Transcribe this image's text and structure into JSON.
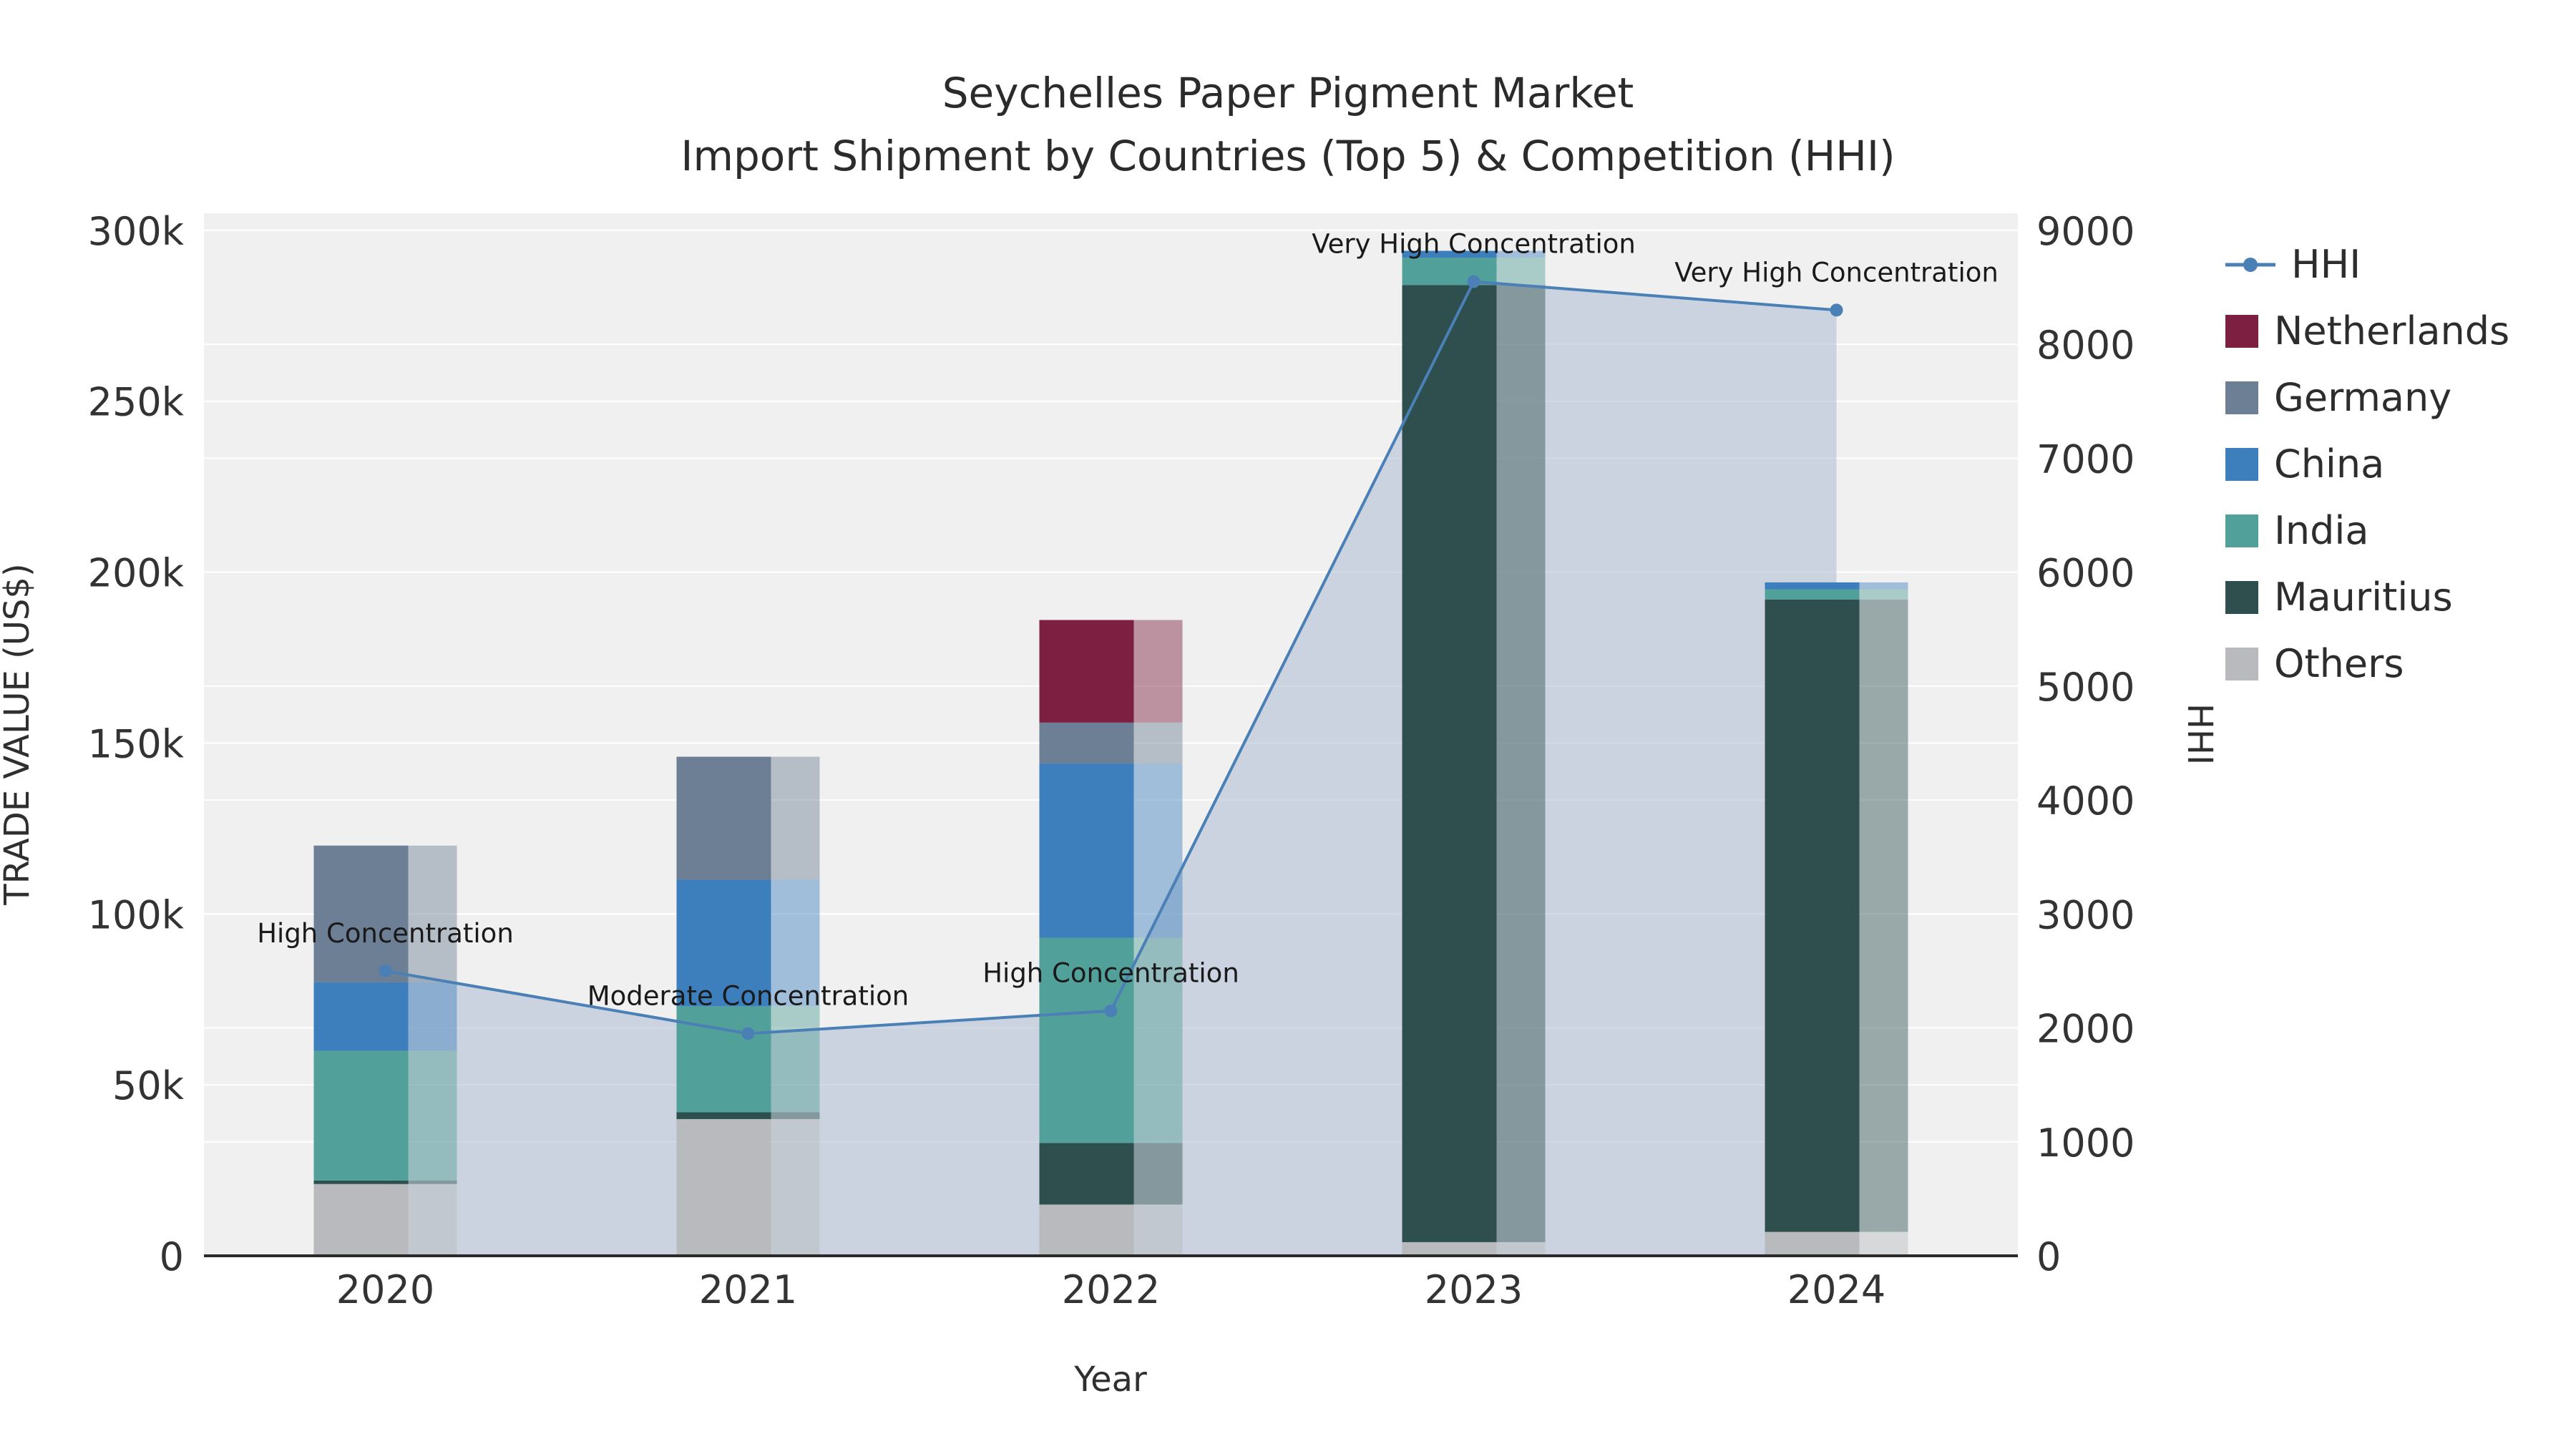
{
  "chart_data": {
    "type": "bar",
    "title_line1": "Seychelles Paper Pigment Market",
    "title_line2": "Import Shipment by Countries (Top 5) & Competition (HHI)",
    "xlabel": "Year",
    "ylabel_left": "TRADE VALUE (US$)",
    "ylabel_right": "HHI",
    "categories": [
      "2020",
      "2021",
      "2022",
      "2023",
      "2024"
    ],
    "stack_order_bottom_to_top": [
      "Others",
      "Mauritius",
      "India",
      "China",
      "Germany",
      "Netherlands"
    ],
    "series": [
      {
        "name": "Netherlands",
        "color": "#7d1f41",
        "values": [
          0,
          0,
          30000,
          0,
          0
        ]
      },
      {
        "name": "Germany",
        "color": "#6d7f95",
        "values": [
          40000,
          36000,
          12000,
          0,
          0
        ]
      },
      {
        "name": "China",
        "color": "#3d7ebd",
        "values": [
          20000,
          37000,
          51000,
          2000,
          2000
        ]
      },
      {
        "name": "India",
        "color": "#52a09a",
        "values": [
          38000,
          31000,
          60000,
          8000,
          3000
        ]
      },
      {
        "name": "Mauritius",
        "color": "#2f4f4f",
        "values": [
          1000,
          2000,
          18000,
          280000,
          185000
        ]
      },
      {
        "name": "Others",
        "color": "#b8babd",
        "values": [
          21000,
          40000,
          15000,
          4000,
          7000
        ]
      }
    ],
    "hhi_line": {
      "name": "HHI",
      "color": "#4a80b5",
      "fill_color": "rgba(164,182,206,0.5)",
      "values": [
        2500,
        1950,
        2150,
        8550,
        8300
      ]
    },
    "annotations": [
      {
        "x": "2020",
        "label": "High Concentration"
      },
      {
        "x": "2021",
        "label": "Moderate Concentration"
      },
      {
        "x": "2022",
        "label": "High Concentration"
      },
      {
        "x": "2023",
        "label": "Very High Concentration"
      },
      {
        "x": "2024",
        "label": "Very High Concentration"
      }
    ],
    "left_axis": {
      "max": 305000,
      "ticks": [
        {
          "label": "0",
          "value": 0
        },
        {
          "label": "50k",
          "value": 50000
        },
        {
          "label": "100k",
          "value": 100000
        },
        {
          "label": "150k",
          "value": 150000
        },
        {
          "label": "200k",
          "value": 200000
        },
        {
          "label": "250k",
          "value": 250000
        },
        {
          "label": "300k",
          "value": 300000
        }
      ]
    },
    "right_axis": {
      "max": 9150,
      "ticks": [
        {
          "label": "0",
          "value": 0
        },
        {
          "label": "1000",
          "value": 1000
        },
        {
          "label": "2000",
          "value": 2000
        },
        {
          "label": "3000",
          "value": 3000
        },
        {
          "label": "4000",
          "value": 4000
        },
        {
          "label": "5000",
          "value": 5000
        },
        {
          "label": "6000",
          "value": 6000
        },
        {
          "label": "7000",
          "value": 7000
        },
        {
          "label": "8000",
          "value": 8000
        },
        {
          "label": "9000",
          "value": 9000
        }
      ]
    },
    "colors": {
      "plot_bg": "#f0f0f1",
      "grid": "#ffffff",
      "axis_line": "#2a2a2a",
      "tick_text": "#333333"
    }
  }
}
